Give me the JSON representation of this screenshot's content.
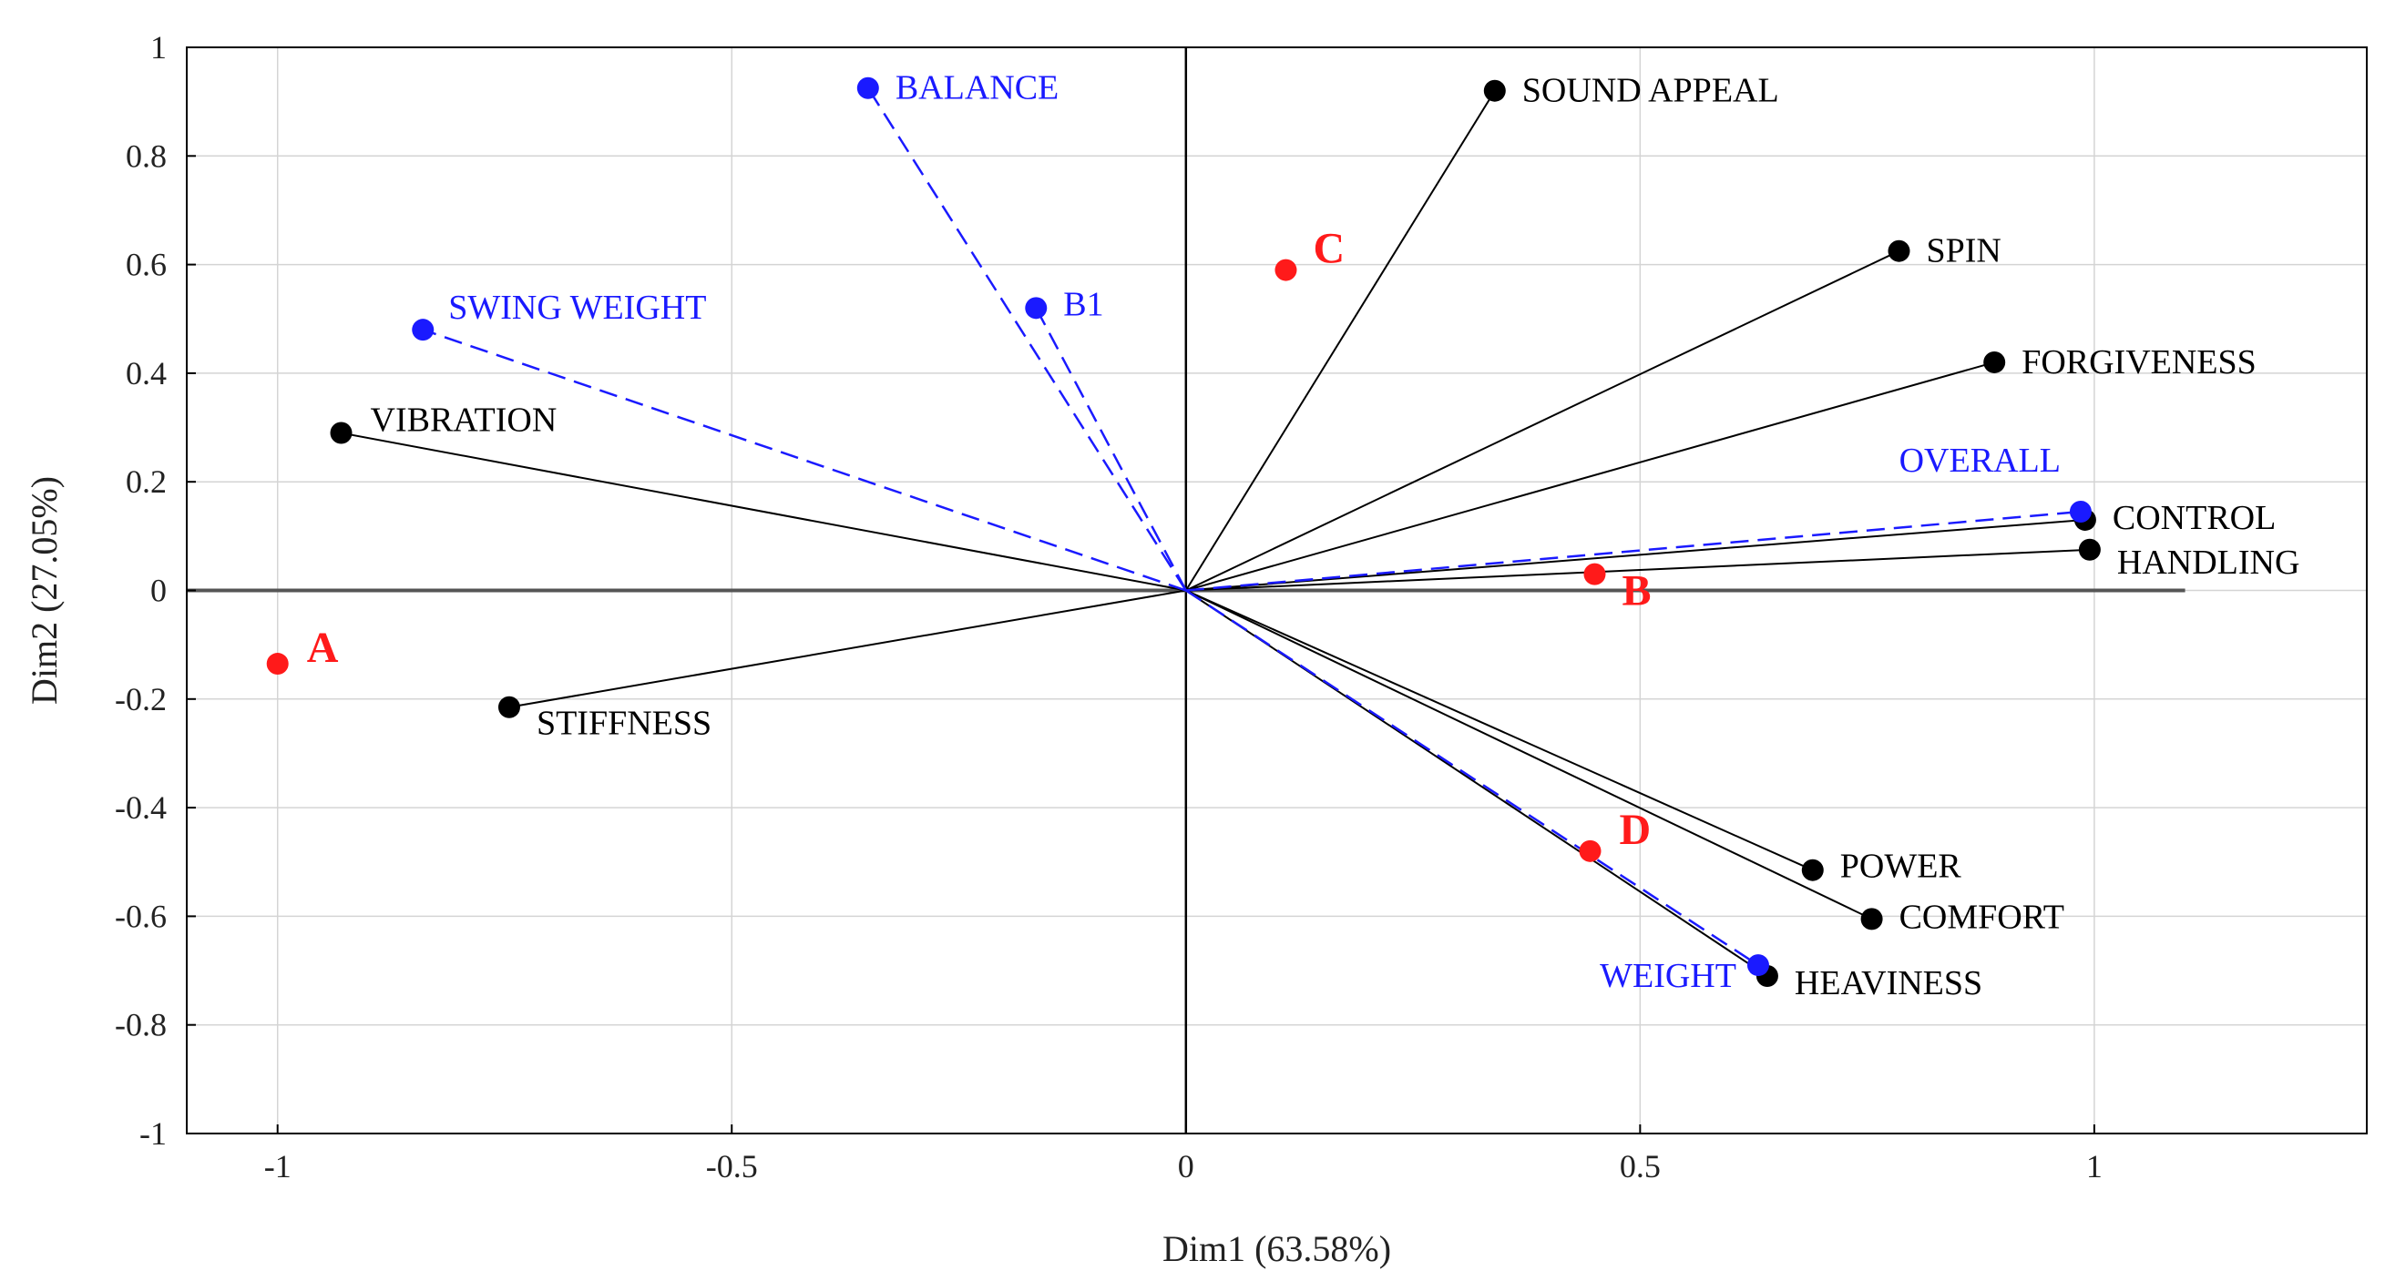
{
  "chart_data": {
    "type": "scatter",
    "title": "",
    "xlabel": "Dim1 (63.58%)",
    "ylabel": "Dim2 (27.05%)",
    "xlim": [
      -1.1,
      1.3
    ],
    "ylim": [
      -1,
      1
    ],
    "x_ticks": [
      -1,
      -0.5,
      0,
      0.5,
      1
    ],
    "x_tick_labels": [
      "-1",
      "-0.5",
      "0",
      "0.5",
      "1"
    ],
    "y_ticks": [
      1,
      0.8,
      0.6,
      0.4,
      0.2,
      0,
      -0.2,
      -0.4,
      -0.6,
      -0.8,
      -1
    ],
    "y_tick_labels": [
      "1",
      "0.8",
      "0.6",
      "0.4",
      "0.2",
      "0",
      "-0.2",
      "-0.4",
      "-0.6",
      "-0.8",
      "-1"
    ],
    "grid": true,
    "colors": {
      "active": "#000000",
      "supplementary": "#1a1aff",
      "observation": "#ff1a1a",
      "grid": "#d4d4d4",
      "zero_line": "#555555"
    },
    "variables_active": [
      {
        "name": "SOUND APPEAL",
        "x": 0.34,
        "y": 0.92
      },
      {
        "name": "SPIN",
        "x": 0.785,
        "y": 0.625
      },
      {
        "name": "FORGIVENESS",
        "x": 0.89,
        "y": 0.42
      },
      {
        "name": "CONTROL",
        "x": 0.99,
        "y": 0.13
      },
      {
        "name": "HANDLING",
        "x": 0.995,
        "y": 0.075
      },
      {
        "name": "POWER",
        "x": 0.69,
        "y": -0.515
      },
      {
        "name": "COMFORT",
        "x": 0.755,
        "y": -0.605
      },
      {
        "name": "HEAVINESS",
        "x": 0.64,
        "y": -0.71
      },
      {
        "name": "VIBRATION",
        "x": -0.93,
        "y": 0.29
      },
      {
        "name": "STIFFNESS",
        "x": -0.745,
        "y": -0.215
      }
    ],
    "variables_supplementary": [
      {
        "name": "BALANCE",
        "x": -0.35,
        "y": 0.925
      },
      {
        "name": "B1",
        "x": -0.165,
        "y": 0.52
      },
      {
        "name": "SWING WEIGHT",
        "x": -0.84,
        "y": 0.48
      },
      {
        "name": "OVERALL",
        "x": 0.985,
        "y": 0.145
      },
      {
        "name": "WEIGHT",
        "x": 0.63,
        "y": -0.69
      }
    ],
    "observations": [
      {
        "name": "A",
        "x": -1.0,
        "y": -0.135
      },
      {
        "name": "B",
        "x": 0.45,
        "y": 0.03
      },
      {
        "name": "C",
        "x": 0.11,
        "y": 0.59
      },
      {
        "name": "D",
        "x": 0.445,
        "y": -0.48
      }
    ]
  }
}
